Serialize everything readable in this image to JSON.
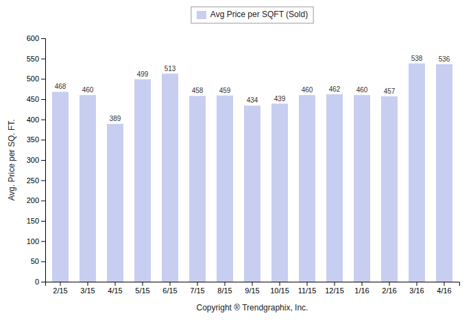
{
  "chart_data": {
    "type": "bar",
    "categories": [
      "2/15",
      "3/15",
      "4/15",
      "5/15",
      "6/15",
      "7/15",
      "8/15",
      "9/15",
      "10/15",
      "11/15",
      "12/15",
      "1/16",
      "2/16",
      "3/16",
      "4/16"
    ],
    "series": [
      {
        "name": "Avg Price per SQFT (Sold)",
        "color": "#c8cef0",
        "values": [
          468,
          460,
          389,
          499,
          513,
          458,
          459,
          434,
          439,
          460,
          462,
          460,
          457,
          538,
          536
        ]
      }
    ],
    "ylabel": "Avg. Price per SQ. FT.",
    "xlabel": "Copyright ® Trendgraphix, Inc.",
    "ylim": [
      0,
      600
    ],
    "yticks": [
      0,
      50,
      100,
      150,
      200,
      250,
      300,
      350,
      400,
      450,
      500,
      550,
      600
    ],
    "grid": false,
    "legend": "top",
    "data_labels": true
  }
}
